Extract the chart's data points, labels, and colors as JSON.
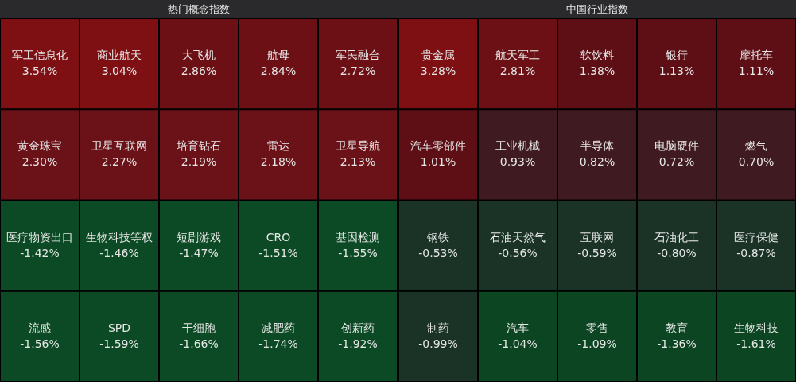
{
  "chart_data": [
    {
      "type": "other",
      "title": "热门概念指数",
      "categories": [
        "军工信息化",
        "商业航天",
        "大飞机",
        "航母",
        "军民融合",
        "黄金珠宝",
        "卫星互联网",
        "培育钻石",
        "雷达",
        "卫星导航",
        "医疗物资出口",
        "生物科技等权",
        "短剧游戏",
        "CRO",
        "基因检测",
        "流感",
        "SPD",
        "干细胞",
        "减肥药",
        "创新药"
      ],
      "values": [
        3.54,
        3.04,
        2.86,
        2.84,
        2.72,
        2.3,
        2.27,
        2.19,
        2.18,
        2.13,
        -1.42,
        -1.46,
        -1.47,
        -1.51,
        -1.55,
        -1.56,
        -1.59,
        -1.66,
        -1.74,
        -1.92
      ],
      "value_labels": [
        "3.54%",
        "3.04%",
        "2.86%",
        "2.84%",
        "2.72%",
        "2.30%",
        "2.27%",
        "2.19%",
        "2.18%",
        "2.13%",
        "-1.42%",
        "-1.46%",
        "-1.47%",
        "-1.51%",
        "-1.55%",
        "-1.56%",
        "-1.59%",
        "-1.66%",
        "-1.74%",
        "-1.92%"
      ],
      "colors": [
        "#7e1014",
        "#7e1014",
        "#6c1016",
        "#6c1016",
        "#6c1016",
        "#6a1218",
        "#6a1218",
        "#6a1218",
        "#6a1218",
        "#6a1218",
        "#0b4a24",
        "#0b4a24",
        "#0b4a24",
        "#0b4a24",
        "#0b4a24",
        "#0b4a24",
        "#0b4a24",
        "#0b4a24",
        "#0b4a24",
        "#0b4a24"
      ]
    },
    {
      "type": "other",
      "title": "中国行业指数",
      "categories": [
        "贵金属",
        "航天军工",
        "软饮料",
        "银行",
        "摩托车",
        "汽车零部件",
        "工业机械",
        "半导体",
        "电脑硬件",
        "燃气",
        "钢铁",
        "石油天然气",
        "互联网",
        "石油化工",
        "医疗保健",
        "制药",
        "汽车",
        "零售",
        "教育",
        "生物科技"
      ],
      "values": [
        3.28,
        2.81,
        1.38,
        1.13,
        1.11,
        1.01,
        0.93,
        0.82,
        0.72,
        0.7,
        -0.53,
        -0.56,
        -0.59,
        -0.8,
        -0.87,
        -0.99,
        -1.04,
        -1.09,
        -1.36,
        -1.61
      ],
      "value_labels": [
        "3.28%",
        "2.81%",
        "1.38%",
        "1.13%",
        "1.11%",
        "1.01%",
        "0.93%",
        "0.82%",
        "0.72%",
        "0.70%",
        "-0.53%",
        "-0.56%",
        "-0.59%",
        "-0.80%",
        "-0.87%",
        "-0.99%",
        "-1.04%",
        "-1.09%",
        "-1.36%",
        "-1.61%"
      ],
      "colors": [
        "#7e1014",
        "#6c1016",
        "#5e0f15",
        "#5e0f15",
        "#5e0f15",
        "#5e0f15",
        "#3f1a20",
        "#3f1a20",
        "#3f1a20",
        "#3f1a20",
        "#1a3326",
        "#1a3326",
        "#1a3326",
        "#1a3326",
        "#1a3326",
        "#1a3326",
        "#0b4522",
        "#0b4522",
        "#0b4522",
        "#0b4522"
      ]
    }
  ]
}
